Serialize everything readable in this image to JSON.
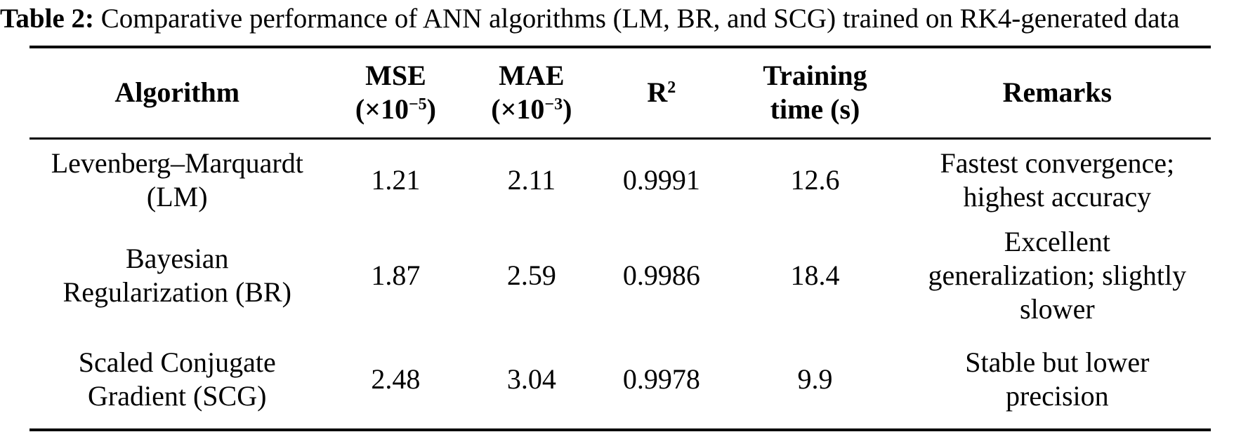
{
  "caption": {
    "label": "Table 2:",
    "text": " Comparative performance of ANN algorithms (LM, BR, and SCG) trained on RK4-generated data"
  },
  "table": {
    "headers": {
      "algorithm": "Algorithm",
      "mse_line1": "MSE",
      "mse_base": "(×10",
      "mse_sup": "−5",
      "mse_close": ")",
      "mae_line1": "MAE",
      "mae_base": "(×10",
      "mae_sup": "−3",
      "mae_close": ")",
      "r_base": "R",
      "r_sup": "2",
      "time_line1": "Training",
      "time_line2": "time (s)",
      "remarks": "Remarks"
    },
    "rows": [
      {
        "algorithm": "Levenberg–Marquardt (LM)",
        "mse": "1.21",
        "mae": "2.11",
        "r2": "0.9991",
        "time": "12.6",
        "remarks": "Fastest convergence; highest accuracy"
      },
      {
        "algorithm": "Bayesian Regularization (BR)",
        "mse": "1.87",
        "mae": "2.59",
        "r2": "0.9986",
        "time": "18.4",
        "remarks": "Excellent generalization; slightly slower"
      },
      {
        "algorithm": "Scaled Conjugate Gradient (SCG)",
        "mse": "2.48",
        "mae": "3.04",
        "r2": "0.9978",
        "time": "9.9",
        "remarks": "Stable but lower precision"
      }
    ]
  },
  "colors": {
    "text": "#000000",
    "background": "#ffffff",
    "rule": "#000000"
  }
}
